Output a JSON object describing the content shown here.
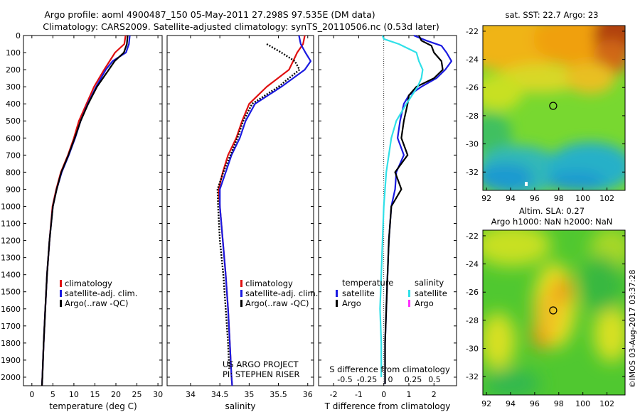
{
  "header": {
    "line1": "Argo profile: aoml 4900487_150 05-May-2011 27.298S 97.535E (DM data)",
    "line2": "Climatology: CARS2009. Satellite-adjusted climatology: synTS_20110506.nc (0.53d later)"
  },
  "credit": "US ARGO PROJECT",
  "pi": "PI: STEPHEN RISER",
  "stamp": "©IMOS 03-Aug-2017 03:37:28",
  "colors": {
    "climatology": "#e01010",
    "satellite": "#1a1ae0",
    "argo": "#000000",
    "sal_satellite": "#30e0e8",
    "sal_argo": "#ff30ff"
  },
  "legend_profile": [
    "climatology",
    "satellite-adj. clim.",
    "Argo(..raw -QC)"
  ],
  "legend_diff": {
    "temperature_title": "temperature",
    "salinity_title": "salinity",
    "satellite": "satellite",
    "argo": "Argo"
  },
  "maps": {
    "sst_title": "sat. SST: 22.7 Argo: 23",
    "sla_title": "Altim. SLA: 0.27",
    "sla_subtitle": "Argo h1000: NaN h2000: NaN",
    "lat_ticks": [
      "-22",
      "-24",
      "-26",
      "-28",
      "-30",
      "-32"
    ],
    "lon_ticks": [
      "92",
      "94",
      "96",
      "98",
      "100",
      "102"
    ],
    "float_lon": 97.535,
    "float_lat": -27.298
  },
  "chart_data": [
    {
      "type": "line",
      "xlabel": "temperature (deg C)",
      "ylabel": "",
      "xlim": [
        -2,
        31
      ],
      "ylim": [
        2050,
        0
      ],
      "xticks": [
        0,
        5,
        10,
        15,
        20,
        25,
        30
      ],
      "yticks": [
        0,
        100,
        200,
        300,
        400,
        500,
        600,
        700,
        800,
        900,
        1000,
        1100,
        1200,
        1300,
        1400,
        1500,
        1600,
        1700,
        1800,
        1900,
        2000
      ],
      "series": [
        {
          "name": "climatology",
          "depth": [
            0,
            50,
            100,
            150,
            200,
            300,
            400,
            500,
            600,
            700,
            800,
            900,
            1000,
            1200,
            1400,
            1600,
            1800,
            2000,
            2050
          ],
          "values": [
            22.3,
            22.0,
            19.8,
            18.5,
            17.2,
            14.8,
            13.0,
            11.2,
            10.0,
            8.6,
            6.9,
            5.8,
            4.9,
            4.2,
            3.6,
            3.2,
            2.8,
            2.5,
            2.4
          ]
        },
        {
          "name": "satellite-adj. clim.",
          "depth": [
            0,
            50,
            100,
            150,
            200,
            300,
            400,
            500,
            600,
            700,
            800,
            900,
            1000,
            1200,
            1400,
            1600,
            1800,
            2000,
            2050
          ],
          "values": [
            23.3,
            23.1,
            22.4,
            19.2,
            17.6,
            15.3,
            13.3,
            11.6,
            10.3,
            8.8,
            7.1,
            5.9,
            5.0,
            4.2,
            3.6,
            3.2,
            2.8,
            2.5,
            2.4
          ]
        },
        {
          "name": "Argo(..raw -QC)",
          "depth": [
            0,
            50,
            100,
            150,
            200,
            300,
            400,
            500,
            600,
            700,
            800,
            900,
            1000,
            1200,
            1400,
            1600,
            1800,
            2000,
            2050
          ],
          "values": [
            22.8,
            22.6,
            21.9,
            19.7,
            18.3,
            15.5,
            13.4,
            11.6,
            10.2,
            8.7,
            7.0,
            5.9,
            5.0,
            4.2,
            3.6,
            3.2,
            2.8,
            2.5,
            2.4
          ]
        }
      ]
    },
    {
      "type": "line",
      "xlabel": "salinity",
      "ylabel": "",
      "xlim": [
        33.6,
        36.1
      ],
      "ylim": [
        2050,
        0
      ],
      "xticks": [
        34,
        34.5,
        35,
        35.5,
        36
      ],
      "series": [
        {
          "name": "climatology",
          "depth": [
            0,
            50,
            100,
            150,
            200,
            300,
            400,
            500,
            600,
            700,
            800,
            900,
            1000,
            1200,
            1400,
            1600,
            1800,
            2000,
            2050
          ],
          "values": [
            35.95,
            35.92,
            35.82,
            35.75,
            35.68,
            35.3,
            35.0,
            34.88,
            34.78,
            34.64,
            34.55,
            34.48,
            34.5,
            34.55,
            34.6,
            34.64,
            34.67,
            34.7,
            34.71
          ]
        },
        {
          "name": "satellite-adj. clim.",
          "depth": [
            0,
            50,
            100,
            150,
            200,
            300,
            400,
            500,
            600,
            700,
            800,
            900,
            1000,
            1200,
            1400,
            1600,
            1800,
            2000,
            2050
          ],
          "values": [
            35.85,
            35.88,
            35.96,
            36.05,
            35.95,
            35.55,
            35.1,
            34.94,
            34.84,
            34.7,
            34.6,
            34.5,
            34.5,
            34.55,
            34.6,
            34.64,
            34.67,
            34.7,
            34.71
          ]
        },
        {
          "name": "Argo(..raw -QC)",
          "depth": [
            50,
            100,
            150,
            200,
            300,
            400,
            500,
            600,
            700,
            800,
            900,
            1000,
            1200,
            1400,
            1600,
            1800,
            1950
          ],
          "values": [
            35.3,
            35.55,
            35.78,
            35.86,
            35.5,
            35.05,
            34.9,
            34.8,
            34.68,
            34.56,
            34.46,
            34.47,
            34.5,
            34.56,
            34.6,
            34.64,
            34.66
          ]
        }
      ]
    },
    {
      "type": "line",
      "xlabel": "T difference from climatology",
      "x2label": "S difference from climatology",
      "xlim": [
        -2.6,
        2.9
      ],
      "ylim": [
        2050,
        0
      ],
      "xticks": [
        -2,
        -1,
        0,
        1,
        2
      ],
      "x2ticks": [
        -0.5,
        -0.25,
        0,
        0.25,
        0.5
      ],
      "series": [
        {
          "name": "temperature satellite",
          "depth": [
            0,
            30,
            60,
            100,
            150,
            200,
            250,
            300,
            350,
            400,
            500,
            600,
            700,
            800,
            900,
            1000,
            1200,
            1400,
            1600,
            1800,
            2000,
            2040
          ],
          "values": [
            1.2,
            1.7,
            2.3,
            2.5,
            2.7,
            2.45,
            2.1,
            1.5,
            1.0,
            0.8,
            0.65,
            0.55,
            0.8,
            0.5,
            0.45,
            0.3,
            0.2,
            0.15,
            0.1,
            0.05,
            0.05,
            0.05
          ]
        },
        {
          "name": "temperature Argo",
          "depth": [
            0,
            30,
            60,
            100,
            150,
            200,
            250,
            300,
            350,
            400,
            500,
            600,
            700,
            800,
            900,
            1000,
            1200,
            1400,
            1600,
            1800,
            2000,
            2040
          ],
          "values": [
            1.4,
            1.5,
            1.9,
            2.0,
            2.3,
            2.35,
            2.0,
            1.3,
            1.0,
            0.95,
            0.8,
            0.7,
            0.95,
            0.45,
            0.7,
            0.3,
            0.2,
            0.15,
            0.1,
            0.05,
            0.05,
            0.05
          ]
        },
        {
          "name": "salinity satellite",
          "depth": [
            0,
            20,
            50,
            100,
            150,
            200,
            250,
            300,
            400,
            500,
            600,
            800,
            1000,
            1200,
            1400,
            1600,
            1800,
            2000
          ],
          "values": [
            -0.05,
            0.0,
            0.6,
            1.3,
            1.4,
            1.55,
            1.5,
            1.35,
            0.9,
            0.5,
            0.3,
            0.1,
            0.0,
            -0.05,
            -0.1,
            -0.15,
            -0.1,
            -0.1
          ]
        },
        {
          "name": "salinity Argo",
          "depth": [],
          "values": []
        }
      ]
    }
  ]
}
